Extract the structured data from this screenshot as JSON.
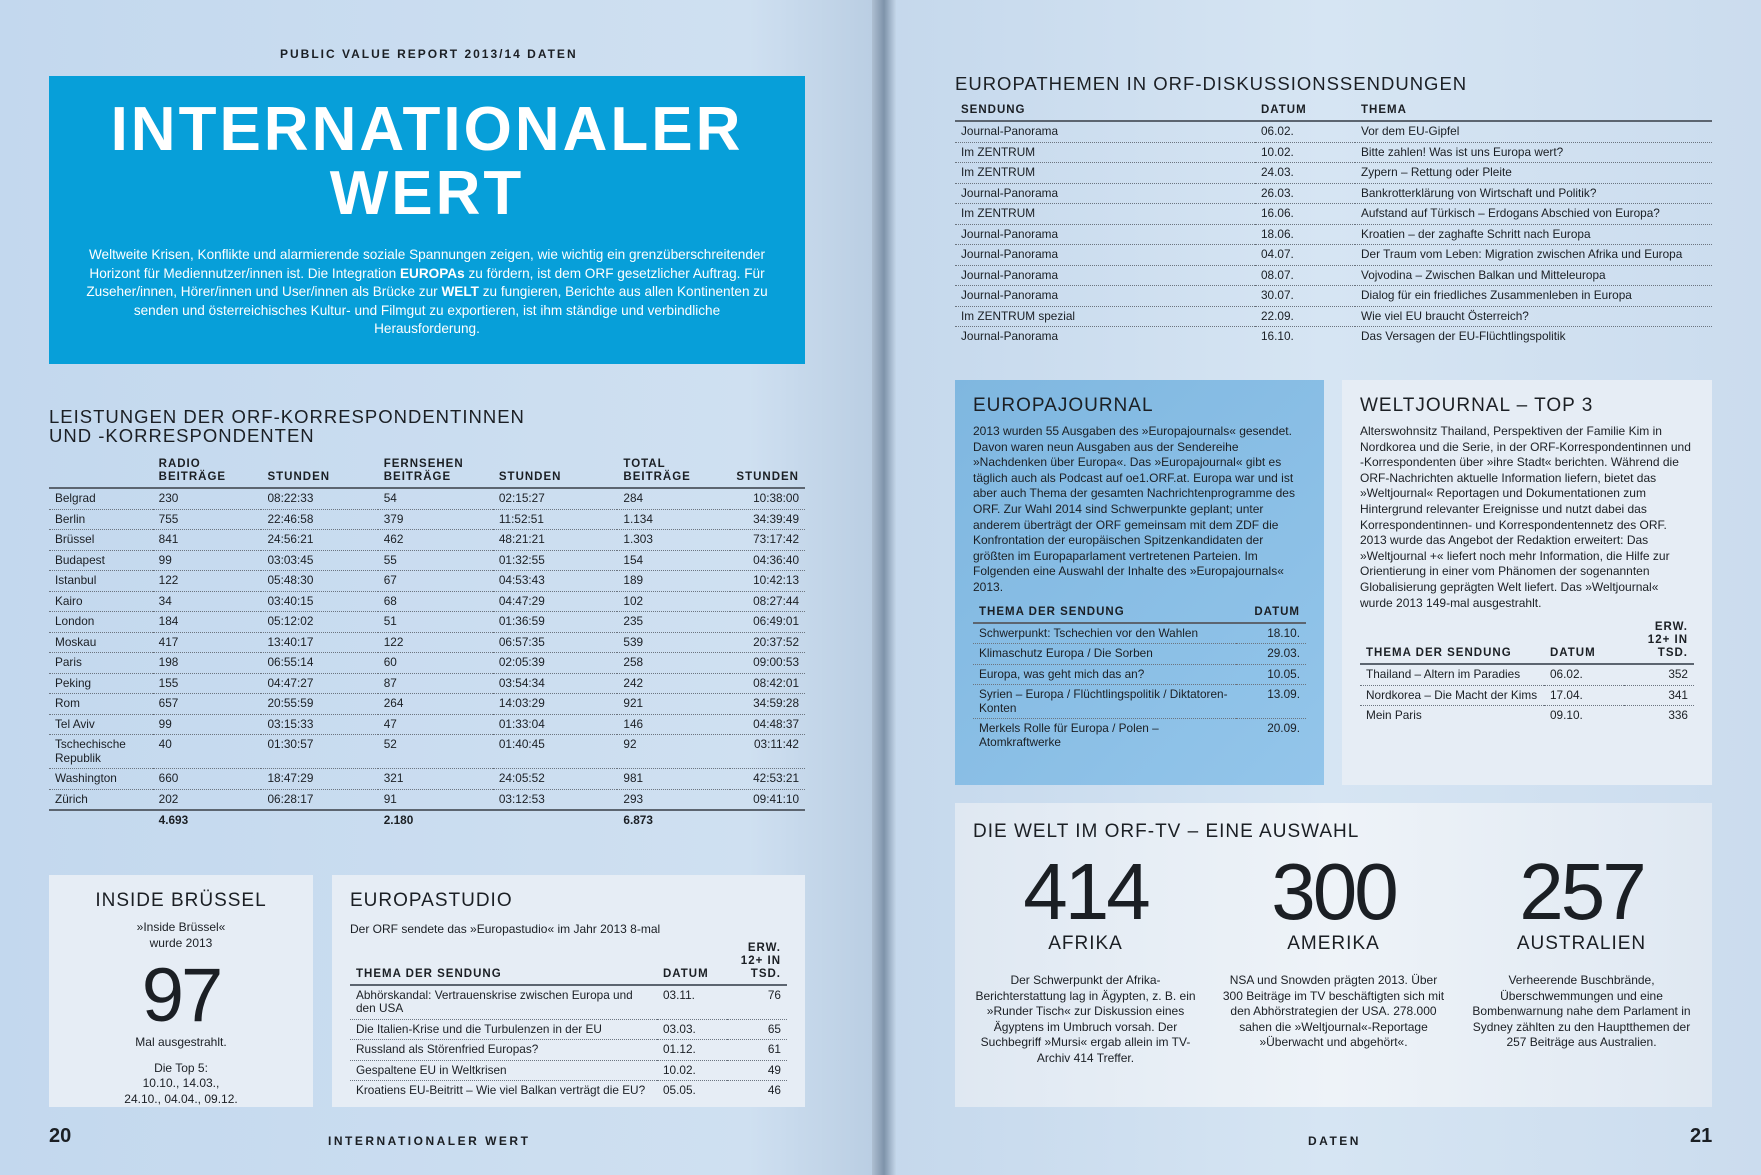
{
  "left": {
    "kicker": "PUBLIC VALUE REPORT 2013/14   DATEN",
    "hero": {
      "title_line1": "INTERNATIONALER",
      "title_line2": "WERT",
      "intro_a": "Weltweite Krisen, Konflikte und alarmierende soziale Spannungen zeigen, wie wichtig ein grenz­überschreitender Horizont für Mediennutzer/innen ist. Die Integration ",
      "intro_b": "EUROPAs",
      "intro_c": " zu fördern, ist dem ORF gesetzlicher Auftrag. Für Zuseher/innen, Hörer/innen und User/innen als Brücke zur ",
      "intro_d": "WELT",
      "intro_e": " zu fungieren, Berichte aus allen Kontinenten zu senden und österreichisches Kultur- und Filmgut zu exportieren, ist ihm ständige und verbindliche Herausforderung."
    },
    "korr": {
      "title_line1": "LEISTUNGEN DER ORF-KORRESPONDENTINNEN",
      "title_line2": "UND -KORRESPONDENTEN",
      "headers": [
        "",
        "RADIO BEITRÄGE",
        "STUNDEN",
        "FERNSEHEN BEITRÄGE",
        "STUNDEN",
        "TOTAL BEITRÄGE",
        "STUNDEN"
      ],
      "rows": [
        [
          "Belgrad",
          "230",
          "08:22:33",
          "54",
          "02:15:27",
          "284",
          "10:38:00"
        ],
        [
          "Berlin",
          "755",
          "22:46:58",
          "379",
          "11:52:51",
          "1.134",
          "34:39:49"
        ],
        [
          "Brüssel",
          "841",
          "24:56:21",
          "462",
          "48:21:21",
          "1.303",
          "73:17:42"
        ],
        [
          "Budapest",
          "99",
          "03:03:45",
          "55",
          "01:32:55",
          "154",
          "04:36:40"
        ],
        [
          "Istanbul",
          "122",
          "05:48:30",
          "67",
          "04:53:43",
          "189",
          "10:42:13"
        ],
        [
          "Kairo",
          "34",
          "03:40:15",
          "68",
          "04:47:29",
          "102",
          "08:27:44"
        ],
        [
          "London",
          "184",
          "05:12:02",
          "51",
          "01:36:59",
          "235",
          "06:49:01"
        ],
        [
          "Moskau",
          "417",
          "13:40:17",
          "122",
          "06:57:35",
          "539",
          "20:37:52"
        ],
        [
          "Paris",
          "198",
          "06:55:14",
          "60",
          "02:05:39",
          "258",
          "09:00:53"
        ],
        [
          "Peking",
          "155",
          "04:47:27",
          "87",
          "03:54:34",
          "242",
          "08:42:01"
        ],
        [
          "Rom",
          "657",
          "20:55:59",
          "264",
          "14:03:29",
          "921",
          "34:59:28"
        ],
        [
          "Tel Aviv",
          "99",
          "03:15:33",
          "47",
          "01:33:04",
          "146",
          "04:48:37"
        ],
        [
          "Tschechische Republik",
          "40",
          "01:30:57",
          "52",
          "01:40:45",
          "92",
          "03:11:42"
        ],
        [
          "Washington",
          "660",
          "18:47:29",
          "321",
          "24:05:52",
          "981",
          "42:53:21"
        ],
        [
          "Zürich",
          "202",
          "06:28:17",
          "91",
          "03:12:53",
          "293",
          "09:41:10"
        ]
      ],
      "totals": [
        "",
        "4.693",
        "",
        "2.180",
        "",
        "6.873",
        ""
      ]
    },
    "inside": {
      "title": "INSIDE BRÜSSEL",
      "line1": "»Inside Brüssel«",
      "line2": "wurde 2013",
      "number": "97",
      "line3": "Mal ausgestrahlt.",
      "top_label": "Die Top 5:",
      "top_a": "10.10., 14.03.,",
      "top_b": "24.10., 04.04., 09.12."
    },
    "europastudio": {
      "title": "EUROPASTUDIO",
      "subtitle": "Der ORF sendete das »Europastudio« im Jahr 2013 8-mal",
      "headers": [
        "THEMA DER SENDUNG",
        "DATUM",
        "ERW. 12+ IN TSD."
      ],
      "rows": [
        [
          "Abhörskandal: Vertrauenskrise zwischen Europa und den USA",
          "03.11.",
          "76"
        ],
        [
          "Die Italien-Krise und die Turbulenzen in der EU",
          "03.03.",
          "65"
        ],
        [
          "Russland als Störenfried Europas?",
          "01.12.",
          "61"
        ],
        [
          "Gespaltene EU in Weltkrisen",
          "10.02.",
          "49"
        ],
        [
          "Kroatiens EU-Beitritt – Wie viel Balkan verträgt die EU?",
          "05.05.",
          "46"
        ]
      ]
    },
    "page_number": "20",
    "footer": "INTERNATIONALER WERT"
  },
  "right": {
    "europathemen": {
      "title": "EUROPATHEMEN IN ORF-DISKUSSIONSSENDUNGEN",
      "headers": [
        "SENDUNG",
        "DATUM",
        "THEMA"
      ],
      "rows": [
        [
          "Journal-Panorama",
          "06.02.",
          "Vor dem EU-Gipfel"
        ],
        [
          "Im ZENTRUM",
          "10.02.",
          "Bitte zahlen! Was ist uns Europa wert?"
        ],
        [
          "Im ZENTRUM",
          "24.03.",
          "Zypern – Rettung oder Pleite"
        ],
        [
          "Journal-Panorama",
          "26.03.",
          "Bankrotterklärung von Wirtschaft und Politik?"
        ],
        [
          "Im ZENTRUM",
          "16.06.",
          "Aufstand auf Türkisch – Erdogans Abschied von Europa?"
        ],
        [
          "Journal-Panorama",
          "18.06.",
          "Kroatien – der zaghafte Schritt nach Europa"
        ],
        [
          "Journal-Panorama",
          "04.07.",
          "Der Traum vom Leben: Migration zwischen Afrika und Europa"
        ],
        [
          "Journal-Panorama",
          "08.07.",
          "Vojvodina – Zwischen Balkan und Mitteleuropa"
        ],
        [
          "Journal-Panorama",
          "30.07.",
          "Dialog für ein friedliches Zusammenleben in Europa"
        ],
        [
          "Im ZENTRUM spezial",
          "22.09.",
          "Wie viel EU braucht Österreich?"
        ],
        [
          "Journal-Panorama",
          "16.10.",
          "Das Versagen der EU-Flüchtlingspolitik"
        ]
      ]
    },
    "europajournal": {
      "title": "EUROPAJOURNAL",
      "text": "2013 wurden 55 Ausgaben des »Europajournals« gesendet. Davon waren neun Ausgaben aus der Sendereihe »Nachdenken über Europa«. Das »Europajournal« gibt es täglich auch als Podcast auf oe1.ORF.at. Europa war und ist aber auch Thema der gesamten Nachrichtenprogramme des ORF. Zur Wahl 2014 sind Schwerpunkte geplant; unter anderem überträgt der ORF gemeinsam mit dem ZDF die Konfrontation der europäischen Spitzenkandidaten der größten im Europaparlament vertretenen Parteien. Im Folgenden eine Auswahl der Inhalte des »Europajournals« 2013.",
      "headers": [
        "THEMA DER SENDUNG",
        "DATUM"
      ],
      "rows": [
        [
          "Schwerpunkt: Tschechien vor den Wahlen",
          "18.10."
        ],
        [
          "Klimaschutz Europa / Die Sorben",
          "29.03."
        ],
        [
          "Europa, was geht mich das an?",
          "10.05."
        ],
        [
          "Syrien – Europa / Flüchtlingspolitik / Diktatoren-Konten",
          "13.09."
        ],
        [
          "Merkels Rolle für Europa / Polen – Atomkraftwerke",
          "20.09."
        ]
      ]
    },
    "weltjournal": {
      "title": "WELTJOURNAL – TOP 3",
      "text": "Alterswohnsitz Thailand, Perspektiven der Familie Kim in Nordkorea und die Serie, in der ORF-Korrespondentinnen und -Korrespondenten über »ihre Stadt« berichten. Während die ORF-Nachrichten aktuelle Information liefern, bietet das »Weltjournal« Reportagen und Dokumentationen zum Hintergrund relevanter Ereignisse und nutzt dabei das Korrespondentinnen- und Korrespondentennetz des ORF. 2013 wurde das Angebot der Redaktion erweitert: Das »Weltjournal +« liefert noch mehr Information, die Hilfe zur Orientierung in einer vom Phänomen der sogenannten Globalisierung geprägten Welt liefert. Das »Weltjournal« wurde 2013 149-mal ausgestrahlt.",
      "headers": [
        "THEMA DER SENDUNG",
        "DATUM",
        "ERW. 12+ IN TSD."
      ],
      "rows": [
        [
          "Thailand – Altern im Paradies",
          "06.02.",
          "352"
        ],
        [
          "Nordkorea – Die Macht der Kims",
          "17.04.",
          "341"
        ],
        [
          "Mein Paris",
          "09.10.",
          "336"
        ]
      ]
    },
    "welt": {
      "title": "DIE WELT IM ORF-TV – EINE AUSWAHL",
      "stats": [
        {
          "number": "414",
          "label": "AFRIKA",
          "text": "Der Schwerpunkt der Afrika-Berichterstattung lag in Ägypten, z. B. ein »Runder Tisch« zur Diskussion eines Ägyptens im Umbruch vorsah. Der Suchbegriff »Mursi« ergab allein im TV-Archiv 414 Treffer."
        },
        {
          "number": "300",
          "label": "AMERIKA",
          "text": "NSA und Snowden prägten 2013. Über 300 Beiträge im TV beschäftigten sich mit den Abhörstrategien der USA. 278.000 sahen die »Weltjournal«-Reportage »Überwacht und abgehört«."
        },
        {
          "number": "257",
          "label": "AUSTRALIEN",
          "text": "Verheerende Buschbrände, Überschwemmungen und eine Bombenwarnung nahe dem Parlament in Sydney zählten zu den Hauptthemen der 257 Beiträge aus Australien."
        }
      ]
    },
    "footer": "DATEN",
    "page_number": "21"
  },
  "colors": {
    "hero_blue": "#079fd9",
    "europajournal_blue": "#89bfe6",
    "page_bg": "#c9dcef"
  }
}
